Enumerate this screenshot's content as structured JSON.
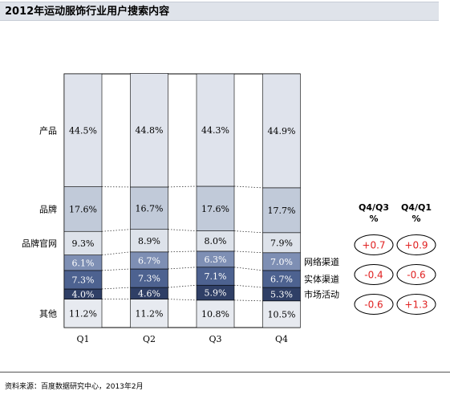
{
  "title": "2012年运动服饰行业用户搜索内容",
  "source": "资料来源：百度数据研究中心，2013年2月",
  "colors": {
    "产品": "#dfe3ec",
    "品牌": "#c1cad9",
    "品牌官网": "#dde2ea",
    "网络渠道": "#7e8fb4",
    "实体渠道": "#4d6290",
    "市场活动": "#2f3f66",
    "其他": "#e7eaf0",
    "change_red": "#e02020",
    "title_bg": "#dfe3ea"
  },
  "chart_data": {
    "type": "bar",
    "stacked": true,
    "categories": [
      "Q1",
      "Q2",
      "Q3",
      "Q4"
    ],
    "series": [
      {
        "name": "其他",
        "values": [
          11.2,
          11.2,
          10.8,
          10.5
        ],
        "labels": [
          "11.2%",
          "11.2%",
          "10.8%",
          "10.5%"
        ]
      },
      {
        "name": "市场活动",
        "values": [
          4.0,
          4.6,
          5.9,
          5.3
        ],
        "labels": [
          "4.0%",
          "4.6%",
          "5.9%",
          "5.3%"
        ]
      },
      {
        "name": "实体渠道",
        "values": [
          7.3,
          7.3,
          7.1,
          6.7
        ],
        "labels": [
          "7.3%",
          "7.3%",
          "7.1%",
          "6.7%"
        ]
      },
      {
        "name": "网络渠道",
        "values": [
          6.1,
          6.7,
          6.3,
          7.0
        ],
        "labels": [
          "6.1%",
          "6.7%",
          "6.3%",
          "7.0%"
        ]
      },
      {
        "name": "品牌官网",
        "values": [
          9.3,
          8.9,
          8.0,
          7.9
        ],
        "labels": [
          "9.3%",
          "8.9%",
          "8.0%",
          "7.9%"
        ]
      },
      {
        "name": "品牌",
        "values": [
          17.6,
          16.7,
          17.6,
          17.7
        ],
        "labels": [
          "17.6%",
          "16.7%",
          "17.6%",
          "17.7%"
        ]
      },
      {
        "name": "产品",
        "values": [
          44.5,
          44.8,
          44.3,
          44.9
        ],
        "labels": [
          "44.5%",
          "44.8%",
          "44.3%",
          "44.9%"
        ]
      }
    ],
    "left_labels": [
      "产品",
      "品牌",
      "品牌官网",
      "其他"
    ],
    "right_labels": [
      "网络渠道",
      "实体渠道",
      "市场活动"
    ],
    "ylim": [
      0,
      100
    ],
    "changes": {
      "headers": [
        [
          "Q4/Q3",
          "%"
        ],
        [
          "Q4/Q1",
          "%"
        ]
      ],
      "rows": [
        {
          "series": "网络渠道",
          "q4_q3": "+0.7",
          "q4_q1": "+0.9"
        },
        {
          "series": "实体渠道",
          "q4_q3": "-0.4",
          "q4_q1": "-0.6"
        },
        {
          "series": "市场活动",
          "q4_q3": "-0.6",
          "q4_q1": "+1.3"
        }
      ]
    }
  }
}
